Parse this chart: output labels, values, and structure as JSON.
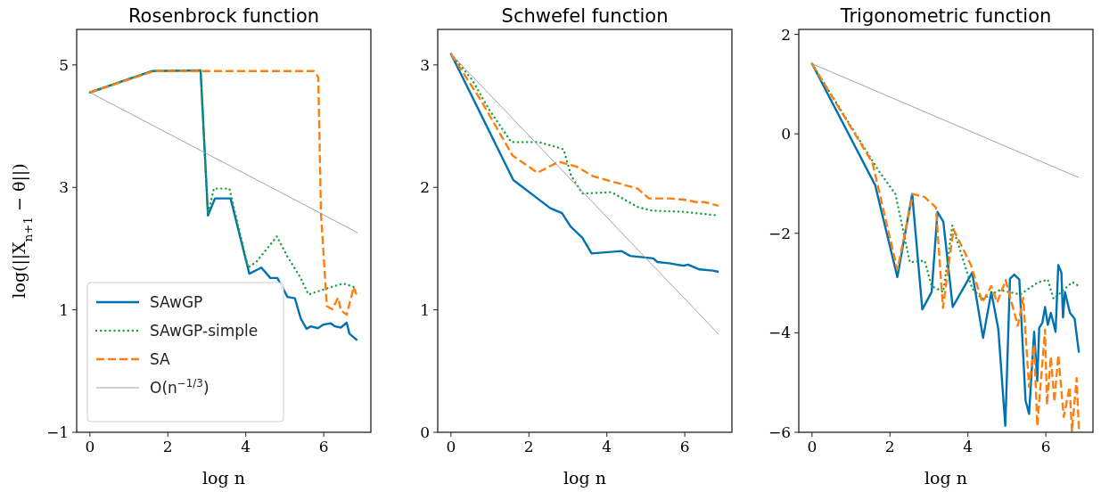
{
  "chart_data": [
    {
      "type": "line",
      "title": "Rosenbrock function",
      "xlabel": "log n",
      "ylabel": "log(||X$_{n+1}$ − θ||)",
      "xlim": [
        -0.34,
        7.21
      ],
      "ylim": [
        -1,
        5.58
      ],
      "xticks": [
        0,
        2,
        4,
        6
      ],
      "yticks": [
        {
          "value": -1,
          "label": "−1"
        },
        1,
        3,
        5
      ],
      "legend": "bottom left",
      "grid": false,
      "series": [
        {
          "name": "SAwGP",
          "color": "#0072b2",
          "line_style": "solid",
          "x": [
            0,
            1.6,
            2.84,
            3.03,
            3.21,
            3.61,
            4.09,
            4.4,
            4.63,
            4.81,
            5.07,
            5.26,
            5.41,
            5.56,
            5.67,
            5.85,
            6.0,
            6.18,
            6.29,
            6.44,
            6.59,
            6.66,
            6.86
          ],
          "values": [
            4.55,
            4.9,
            4.91,
            2.54,
            2.82,
            2.82,
            1.59,
            1.69,
            1.52,
            1.52,
            1.21,
            1.19,
            0.86,
            0.69,
            0.73,
            0.7,
            0.76,
            0.78,
            0.73,
            0.71,
            0.79,
            0.61,
            0.5
          ]
        },
        {
          "name": "SAwGP-simple",
          "color": "#1a9e3c",
          "line_style": "dotted",
          "x": [
            0,
            1.6,
            2.84,
            3.03,
            3.18,
            3.58,
            4.06,
            4.28,
            4.8,
            5.06,
            5.39,
            5.61,
            5.98,
            6.5,
            6.84
          ],
          "values": [
            4.55,
            4.9,
            4.91,
            2.57,
            2.98,
            2.98,
            1.69,
            1.79,
            2.2,
            1.88,
            1.54,
            1.25,
            1.33,
            1.43,
            1.36
          ]
        },
        {
          "name": "SA",
          "color": "#ff7f0e",
          "line_style": "dashed",
          "x": [
            0,
            1.65,
            5.75,
            5.86,
            5.93,
            6.08,
            6.22,
            6.37,
            6.44,
            6.59,
            6.77,
            6.84
          ],
          "values": [
            4.55,
            4.9,
            4.9,
            4.8,
            2.57,
            1.06,
            1.01,
            1.2,
            0.99,
            0.92,
            1.37,
            1.25
          ]
        },
        {
          "name": "O(n$^{−1/3}$)",
          "type": "line",
          "color": "#999999",
          "line_style": "solid",
          "x": [
            0,
            6.87
          ],
          "values": [
            4.55,
            2.26
          ]
        }
      ]
    },
    {
      "type": "line",
      "title": "Schwefel function",
      "xlabel": "log n",
      "xlim": [
        -0.34,
        7.21
      ],
      "ylim": [
        0,
        3.29
      ],
      "xticks": [
        0,
        2,
        4,
        6
      ],
      "yticks": [
        0,
        1,
        2,
        3
      ],
      "legend": false,
      "grid": false,
      "series": [
        {
          "color": "#0072b2",
          "line_style": "solid",
          "x": [
            0,
            1.6,
            2.55,
            2.85,
            3.07,
            3.37,
            3.61,
            4.38,
            4.6,
            5.19,
            5.3,
            5.6,
            5.97,
            6.08,
            6.38,
            6.72,
            6.87
          ],
          "values": [
            3.09,
            2.06,
            1.83,
            1.79,
            1.68,
            1.59,
            1.46,
            1.48,
            1.44,
            1.42,
            1.39,
            1.38,
            1.36,
            1.37,
            1.33,
            1.32,
            1.31
          ]
        },
        {
          "color": "#1a9e3c",
          "line_style": "dotted",
          "x": [
            0,
            0.54,
            0.99,
            1.55,
            2.03,
            2.25,
            2.7,
            2.89,
            3.08,
            3.37,
            4.12,
            4.79,
            5.16,
            5.97,
            6.87
          ],
          "values": [
            3.09,
            2.88,
            2.63,
            2.37,
            2.37,
            2.37,
            2.33,
            2.31,
            2.1,
            1.95,
            1.96,
            1.84,
            1.81,
            1.8,
            1.77
          ]
        },
        {
          "color": "#ff7f0e",
          "line_style": "dashed",
          "x": [
            0,
            0.77,
            1.58,
            2.22,
            2.77,
            3.22,
            3.66,
            4.79,
            5.08,
            5.6,
            5.97,
            6.3,
            6.5,
            6.87
          ],
          "values": [
            3.09,
            2.71,
            2.26,
            2.12,
            2.21,
            2.17,
            2.09,
            1.99,
            1.91,
            1.91,
            1.9,
            1.88,
            1.88,
            1.85
          ]
        },
        {
          "type": "line",
          "color": "#999999",
          "line_style": "solid",
          "x": [
            0,
            6.87
          ],
          "values": [
            3.09,
            0.8
          ]
        }
      ]
    },
    {
      "type": "line",
      "title": "Trigonometric function",
      "xlabel": "log n",
      "xlim": [
        -0.34,
        7.21
      ],
      "ylim": [
        -6,
        2.1
      ],
      "xticks": [
        0,
        2,
        4,
        6
      ],
      "yticks": [
        {
          "value": -6,
          "label": "−6"
        },
        {
          "value": -4,
          "label": "−4"
        },
        {
          "value": -2,
          "label": "−2"
        },
        0,
        2
      ],
      "legend": false,
      "grid": false,
      "series": [
        {
          "color": "#0072b2",
          "line_style": "solid",
          "x": [
            0,
            1.62,
            2.19,
            2.57,
            2.83,
            3.07,
            3.22,
            3.37,
            3.61,
            4.11,
            4.39,
            4.6,
            4.78,
            4.96,
            5.08,
            5.19,
            5.32,
            5.48,
            5.57,
            5.7,
            5.78,
            5.83,
            5.91,
            5.98,
            6.05,
            6.13,
            6.25,
            6.32,
            6.4,
            6.44,
            6.49,
            6.62,
            6.74,
            6.85
          ],
          "values": [
            1.41,
            -1.03,
            -2.88,
            -1.21,
            -3.53,
            -3.18,
            -1.57,
            -1.77,
            -3.48,
            -2.79,
            -4.1,
            -3.18,
            -3.92,
            -5.87,
            -2.91,
            -2.83,
            -2.93,
            -5.36,
            -5.63,
            -3.98,
            -4.97,
            -3.9,
            -3.8,
            -3.48,
            -3.84,
            -3.6,
            -3.98,
            -2.64,
            -2.79,
            -3.69,
            -3.18,
            -3.6,
            -3.72,
            -4.4
          ]
        },
        {
          "color": "#1a9e3c",
          "line_style": "dotted",
          "x": [
            0,
            1.7,
            2.14,
            2.51,
            2.89,
            3.07,
            3.37,
            3.6,
            4.11,
            4.37,
            4.82,
            5.34,
            5.79,
            6.05,
            6.2,
            6.68,
            6.85
          ],
          "values": [
            1.41,
            -0.73,
            -1.21,
            -2.58,
            -2.55,
            -3.06,
            -3.18,
            -1.84,
            -3.11,
            -3.32,
            -3.14,
            -3.23,
            -2.99,
            -2.93,
            -3.32,
            -2.98,
            -3.06
          ]
        },
        {
          "color": "#ff7f0e",
          "line_style": "dashed",
          "x": [
            0,
            1.55,
            2.19,
            2.59,
            2.89,
            3.18,
            3.36,
            3.63,
            4.08,
            4.37,
            4.6,
            4.75,
            4.97,
            5.28,
            5.42,
            5.57,
            5.7,
            5.78,
            5.98,
            6.03,
            6.13,
            6.22,
            6.32,
            6.46,
            6.61,
            6.67,
            6.79,
            6.85
          ],
          "values": [
            1.41,
            -0.58,
            -2.73,
            -1.21,
            -1.27,
            -1.48,
            -3.5,
            -1.92,
            -2.64,
            -3.39,
            -3.06,
            -3.39,
            -2.94,
            -3.86,
            -3.3,
            -5.09,
            -4.24,
            -5.87,
            -3.94,
            -5.45,
            -4.48,
            -5.39,
            -4.45,
            -5.69,
            -5.09,
            -5.98,
            -4.91,
            -5.98
          ]
        },
        {
          "type": "line",
          "color": "#999999",
          "line_style": "solid",
          "x": [
            0,
            6.85
          ],
          "values": [
            1.41,
            -0.88
          ]
        }
      ]
    }
  ]
}
